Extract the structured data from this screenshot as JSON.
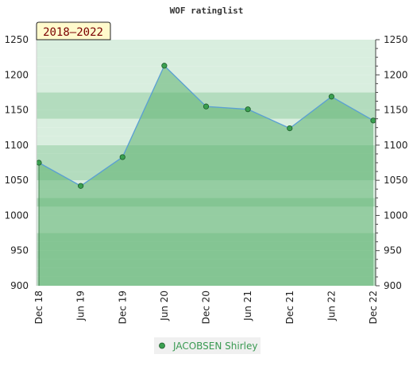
{
  "chart_data": {
    "type": "area",
    "title": "WOF ratinglist",
    "period_label": "2018–2022",
    "x": [
      "Dec 18",
      "Jun 19",
      "Dec 19",
      "Jun 20",
      "Dec 20",
      "Jun 21",
      "Dec 21",
      "Jun 22",
      "Dec 22"
    ],
    "series": [
      {
        "name": "JACOBSEN Shirley",
        "values": [
          1075,
          1042,
          1083,
          1213,
          1155,
          1151,
          1124,
          1169,
          1135
        ]
      }
    ],
    "ylim": [
      900,
      1250
    ],
    "yticks": [
      900,
      950,
      1000,
      1050,
      1100,
      1150,
      1200,
      1250
    ],
    "y_axes": [
      "left",
      "right"
    ],
    "grid": "horizontal bands",
    "legend_position": "bottom-center",
    "xlabel": "",
    "ylabel": ""
  },
  "colors": {
    "area_fill": "#5cb370",
    "line": "#5a9fd4",
    "marker": "#3aa050",
    "band_light": "#d9eedf",
    "band_mid": "#b3dcbe",
    "band_dark": "#8ccb9c",
    "period_box_bg": "#fffacc",
    "legend_bg": "#f0f0f0"
  }
}
